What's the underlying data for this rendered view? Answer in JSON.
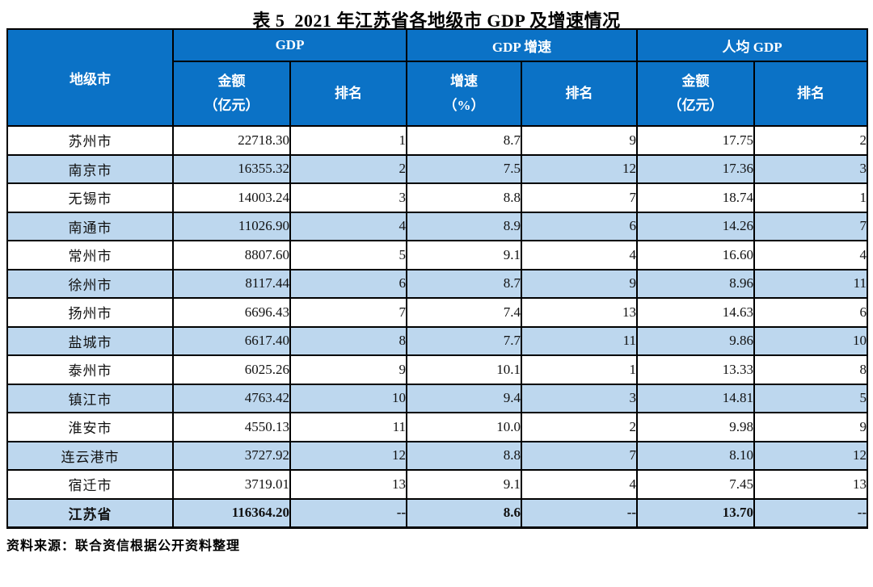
{
  "title": "表 5  2021 年江苏省各地级市 GDP 及增速情况",
  "table": {
    "groups": [
      "GDP",
      "GDP 增速",
      "人均 GDP"
    ],
    "sub_headers": {
      "city": "地级市",
      "gdp_amount": [
        "金额",
        "（亿元）"
      ],
      "gdp_rank": "排名",
      "growth": [
        "增速",
        "（%）"
      ],
      "growth_rank": "排名",
      "pc_amount": [
        "金额",
        "（亿元）"
      ],
      "pc_rank": "排名"
    },
    "rows": [
      [
        "苏州市",
        "22718.30",
        "1",
        "8.7",
        "9",
        "17.75",
        "2"
      ],
      [
        "南京市",
        "16355.32",
        "2",
        "7.5",
        "12",
        "17.36",
        "3"
      ],
      [
        "无锡市",
        "14003.24",
        "3",
        "8.8",
        "7",
        "18.74",
        "1"
      ],
      [
        "南通市",
        "11026.90",
        "4",
        "8.9",
        "6",
        "14.26",
        "7"
      ],
      [
        "常州市",
        "8807.60",
        "5",
        "9.1",
        "4",
        "16.60",
        "4"
      ],
      [
        "徐州市",
        "8117.44",
        "6",
        "8.7",
        "9",
        "8.96",
        "11"
      ],
      [
        "扬州市",
        "6696.43",
        "7",
        "7.4",
        "13",
        "14.63",
        "6"
      ],
      [
        "盐城市",
        "6617.40",
        "8",
        "7.7",
        "11",
        "9.86",
        "10"
      ],
      [
        "泰州市",
        "6025.26",
        "9",
        "10.1",
        "1",
        "13.33",
        "8"
      ],
      [
        "镇江市",
        "4763.42",
        "10",
        "9.4",
        "3",
        "14.81",
        "5"
      ],
      [
        "淮安市",
        "4550.13",
        "11",
        "10.0",
        "2",
        "9.98",
        "9"
      ],
      [
        "连云港市",
        "3727.92",
        "12",
        "8.8",
        "7",
        "8.10",
        "12"
      ],
      [
        "宿迁市",
        "3719.01",
        "13",
        "9.1",
        "4",
        "7.45",
        "13"
      ]
    ],
    "total_row": [
      "江苏省",
      "116364.20",
      "--",
      "8.6",
      "--",
      "13.70",
      "--"
    ]
  },
  "source_note": "资料来源：联合资信根据公开资料整理",
  "colors": {
    "header_bg": "#0B72C6",
    "row_alt_bg": "#BDD7EE",
    "border": "#000000",
    "header_text": "#FFFFFF",
    "body_text": "#111111"
  }
}
